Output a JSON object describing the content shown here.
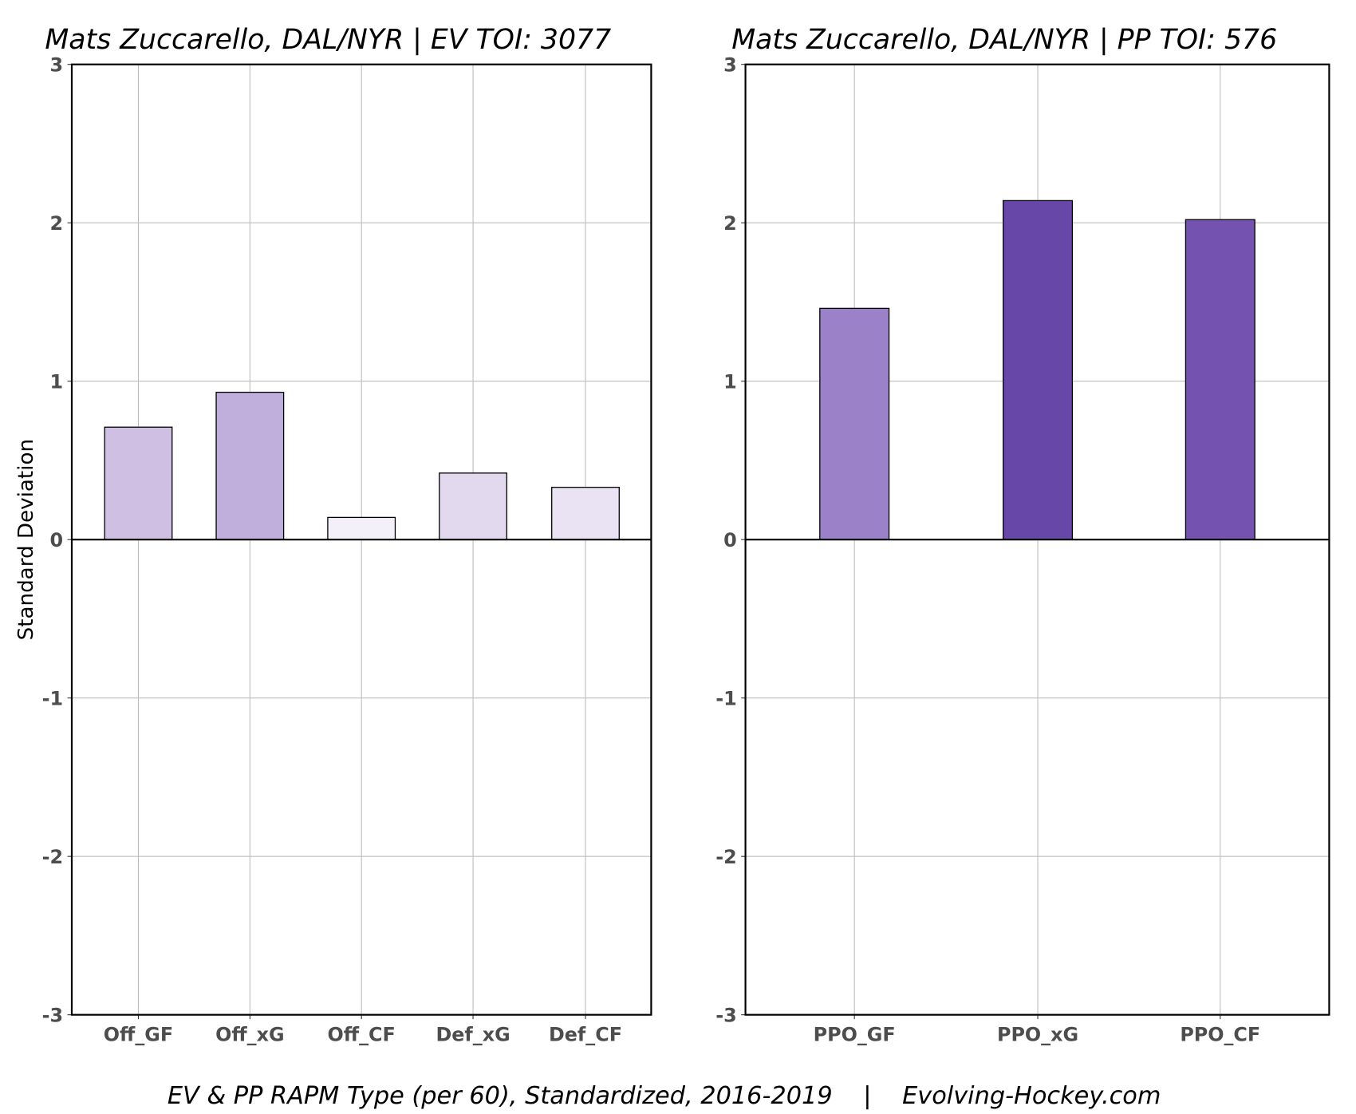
{
  "footer": "EV & PP RAPM Type (per 60), Standardized, 2016-2019    |    Evolving-Hockey.com",
  "chart_data": [
    {
      "type": "bar",
      "title": "Mats Zuccarello, DAL/NYR  |  EV TOI: 3077",
      "ylabel": "Standard Deviation",
      "xlabel": "",
      "ylim": [
        -3,
        3
      ],
      "yticks": [
        3,
        2,
        1,
        0,
        -1,
        -2,
        -3
      ],
      "grid": true,
      "categories": [
        "Off_GF",
        "Off_xG",
        "Off_CF",
        "Def_xG",
        "Def_CF"
      ],
      "values": [
        0.71,
        0.93,
        0.14,
        0.42,
        0.33
      ],
      "colors": [
        "#cfbfe3",
        "#c0aedd",
        "#f3f0f9",
        "#e2d9ef",
        "#e9e3f4"
      ]
    },
    {
      "type": "bar",
      "title": "Mats Zuccarello, DAL/NYR  |  PP TOI: 576",
      "ylabel": "",
      "xlabel": "",
      "ylim": [
        -3,
        3
      ],
      "yticks": [
        3,
        2,
        1,
        0,
        -1,
        -2,
        -3
      ],
      "grid": true,
      "categories": [
        "PPO_GF",
        "PPO_xG",
        "PPO_CF"
      ],
      "values": [
        1.46,
        2.14,
        2.02
      ],
      "colors": [
        "#9b82c8",
        "#6748a9",
        "#7352b0"
      ]
    }
  ]
}
